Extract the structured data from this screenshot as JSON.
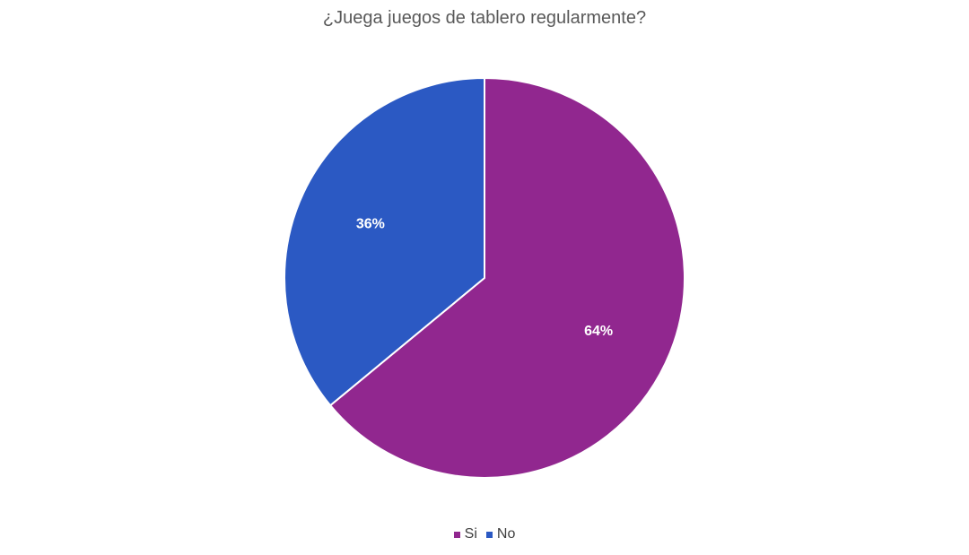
{
  "chart_data": {
    "type": "pie",
    "title": "¿Juega juegos de tablero regularmente?",
    "categories": [
      "Si",
      "No"
    ],
    "values": [
      64,
      36
    ],
    "value_labels": [
      "64%",
      "36%"
    ],
    "colors": [
      "#91278f",
      "#2b59c3"
    ],
    "legend_position": "bottom",
    "start_angle_deg": 0,
    "direction": "clockwise"
  }
}
